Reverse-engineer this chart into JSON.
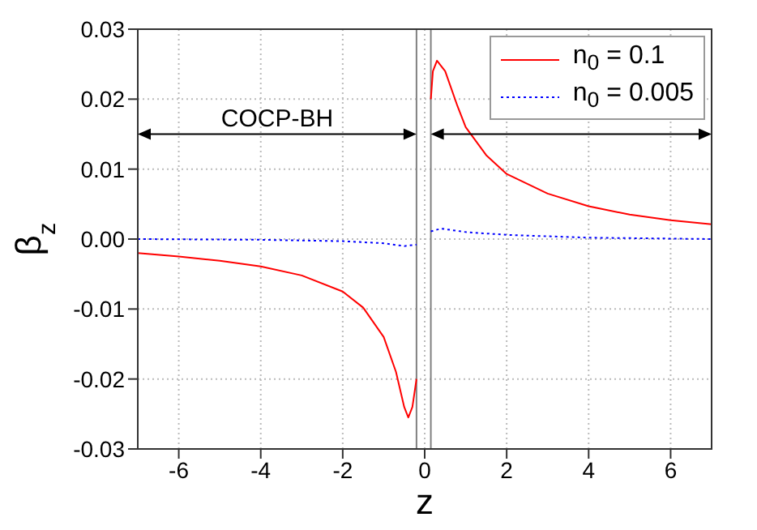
{
  "chart_data": {
    "type": "line",
    "xlabel": "z",
    "ylabel": "β$_{z}$",
    "annotations": [
      "COCP-BH"
    ],
    "xlim": [
      -7,
      7
    ],
    "xticks": [
      -6,
      -4,
      -2,
      0,
      2,
      4,
      6
    ],
    "ylim": [
      -0.03,
      0.03
    ],
    "yticks": [
      -0.03,
      -0.02,
      -0.01,
      {
        "value": 0,
        "label": "0.00"
      },
      0.01,
      0.02,
      0.03
    ],
    "grid": true,
    "legend": "top right",
    "ref_lines": [
      {
        "axis": "x",
        "value": -0.2,
        "color": "#808080"
      },
      {
        "axis": "x",
        "value": 0.15,
        "color": "#808080"
      }
    ],
    "series": [
      {
        "name": "n$_{0}$ = 0.1",
        "color": "#ff0000",
        "line_style": "solid",
        "x": [
          -7,
          -6,
          -5,
          -4,
          -3,
          -2,
          -1.5,
          -1,
          -0.7,
          -0.5,
          -0.4,
          -0.3,
          -0.2,
          0,
          0.15,
          0.2,
          0.3,
          0.5,
          0.8,
          1,
          1.5,
          2,
          3,
          4,
          5,
          6,
          7
        ],
        "values": [
          -0.002,
          -0.0025,
          -0.0031,
          -0.0039,
          -0.0052,
          -0.0075,
          -0.0098,
          -0.014,
          -0.019,
          -0.024,
          -0.0255,
          -0.024,
          -0.02,
          null,
          0.02,
          0.024,
          0.0255,
          0.024,
          0.019,
          0.016,
          0.012,
          0.0093,
          0.0065,
          0.0047,
          0.0035,
          0.0027,
          0.0021
        ]
      },
      {
        "name": "n$_{0}$ = 0.005",
        "color": "#0000ff",
        "line_style": "dotted",
        "x": [
          -7,
          -4,
          -2,
          -1,
          -0.5,
          -0.2,
          0,
          0.15,
          0.4,
          1,
          2,
          4,
          7
        ],
        "values": [
          0,
          -0.0001,
          -0.0003,
          -0.0006,
          -0.001,
          -0.0008,
          null,
          0.0011,
          0.0015,
          0.001,
          0.0006,
          0.0002,
          0
        ]
      }
    ]
  }
}
